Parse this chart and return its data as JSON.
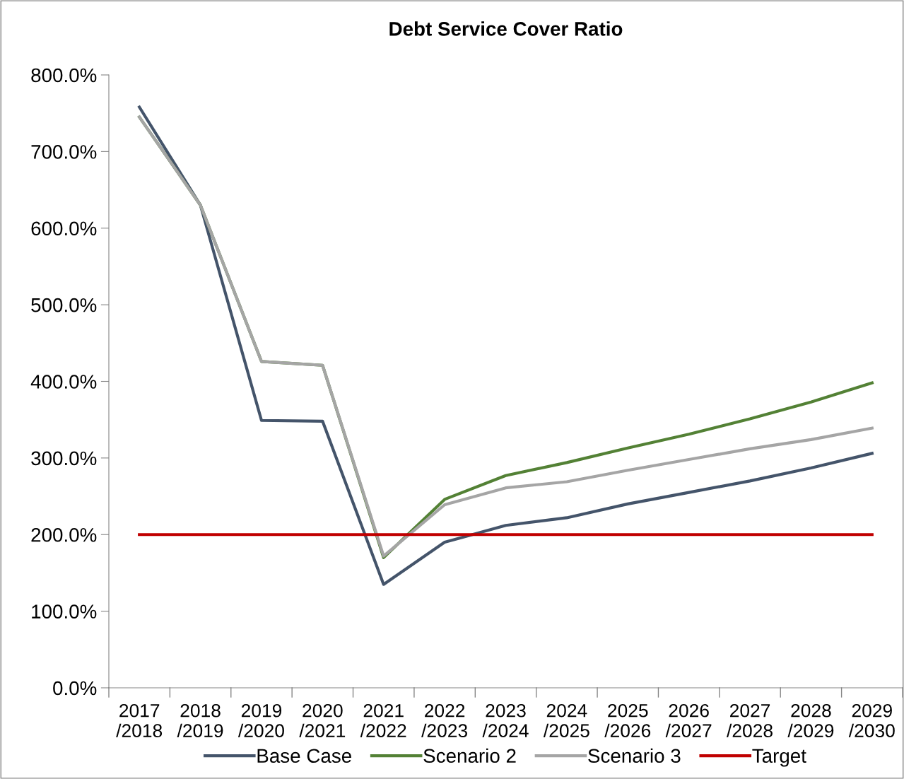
{
  "chart_data": {
    "type": "line",
    "title": "Debt Service Cover Ratio",
    "categories": [
      "2017\n/2018",
      "2018\n/2019",
      "2019\n/2020",
      "2020\n/2021",
      "2021\n/2022",
      "2022\n/2023",
      "2023\n/2024",
      "2024\n/2025",
      "2025\n/2026",
      "2026\n/2027",
      "2027\n/2028",
      "2028\n/2029",
      "2029\n/2030"
    ],
    "series": [
      {
        "name": "Base Case",
        "color": "#44546a",
        "values": [
          758,
          630,
          349,
          348,
          135,
          190,
          212,
          222,
          240,
          255,
          270,
          287,
          306
        ]
      },
      {
        "name": "Scenario 2",
        "color": "#538135",
        "values": [
          745,
          630,
          426,
          421,
          170,
          246,
          277,
          294,
          313,
          331,
          351,
          373,
          398
        ]
      },
      {
        "name": "Scenario 3",
        "color": "#a5a5a5",
        "values": [
          745,
          630,
          426,
          421,
          172,
          239,
          261,
          269,
          284,
          298,
          312,
          324,
          339
        ]
      },
      {
        "name": "Target",
        "color": "#c00000",
        "values": [
          200,
          200,
          200,
          200,
          200,
          200,
          200,
          200,
          200,
          200,
          200,
          200,
          200
        ]
      }
    ],
    "ylim": [
      0,
      800
    ],
    "yticks": [
      {
        "value": 0,
        "label": "0.0%"
      },
      {
        "value": 100,
        "label": "100.0%"
      },
      {
        "value": 200,
        "label": "200.0%"
      },
      {
        "value": 300,
        "label": "300.0%"
      },
      {
        "value": 400,
        "label": "400.0%"
      },
      {
        "value": 500,
        "label": "500.0%"
      },
      {
        "value": 600,
        "label": "600.0%"
      },
      {
        "value": 700,
        "label": "700.0%"
      },
      {
        "value": 800,
        "label": "800.0%"
      }
    ],
    "grid": false,
    "legend": "bottom",
    "marker": "none",
    "line_style": "solid"
  }
}
